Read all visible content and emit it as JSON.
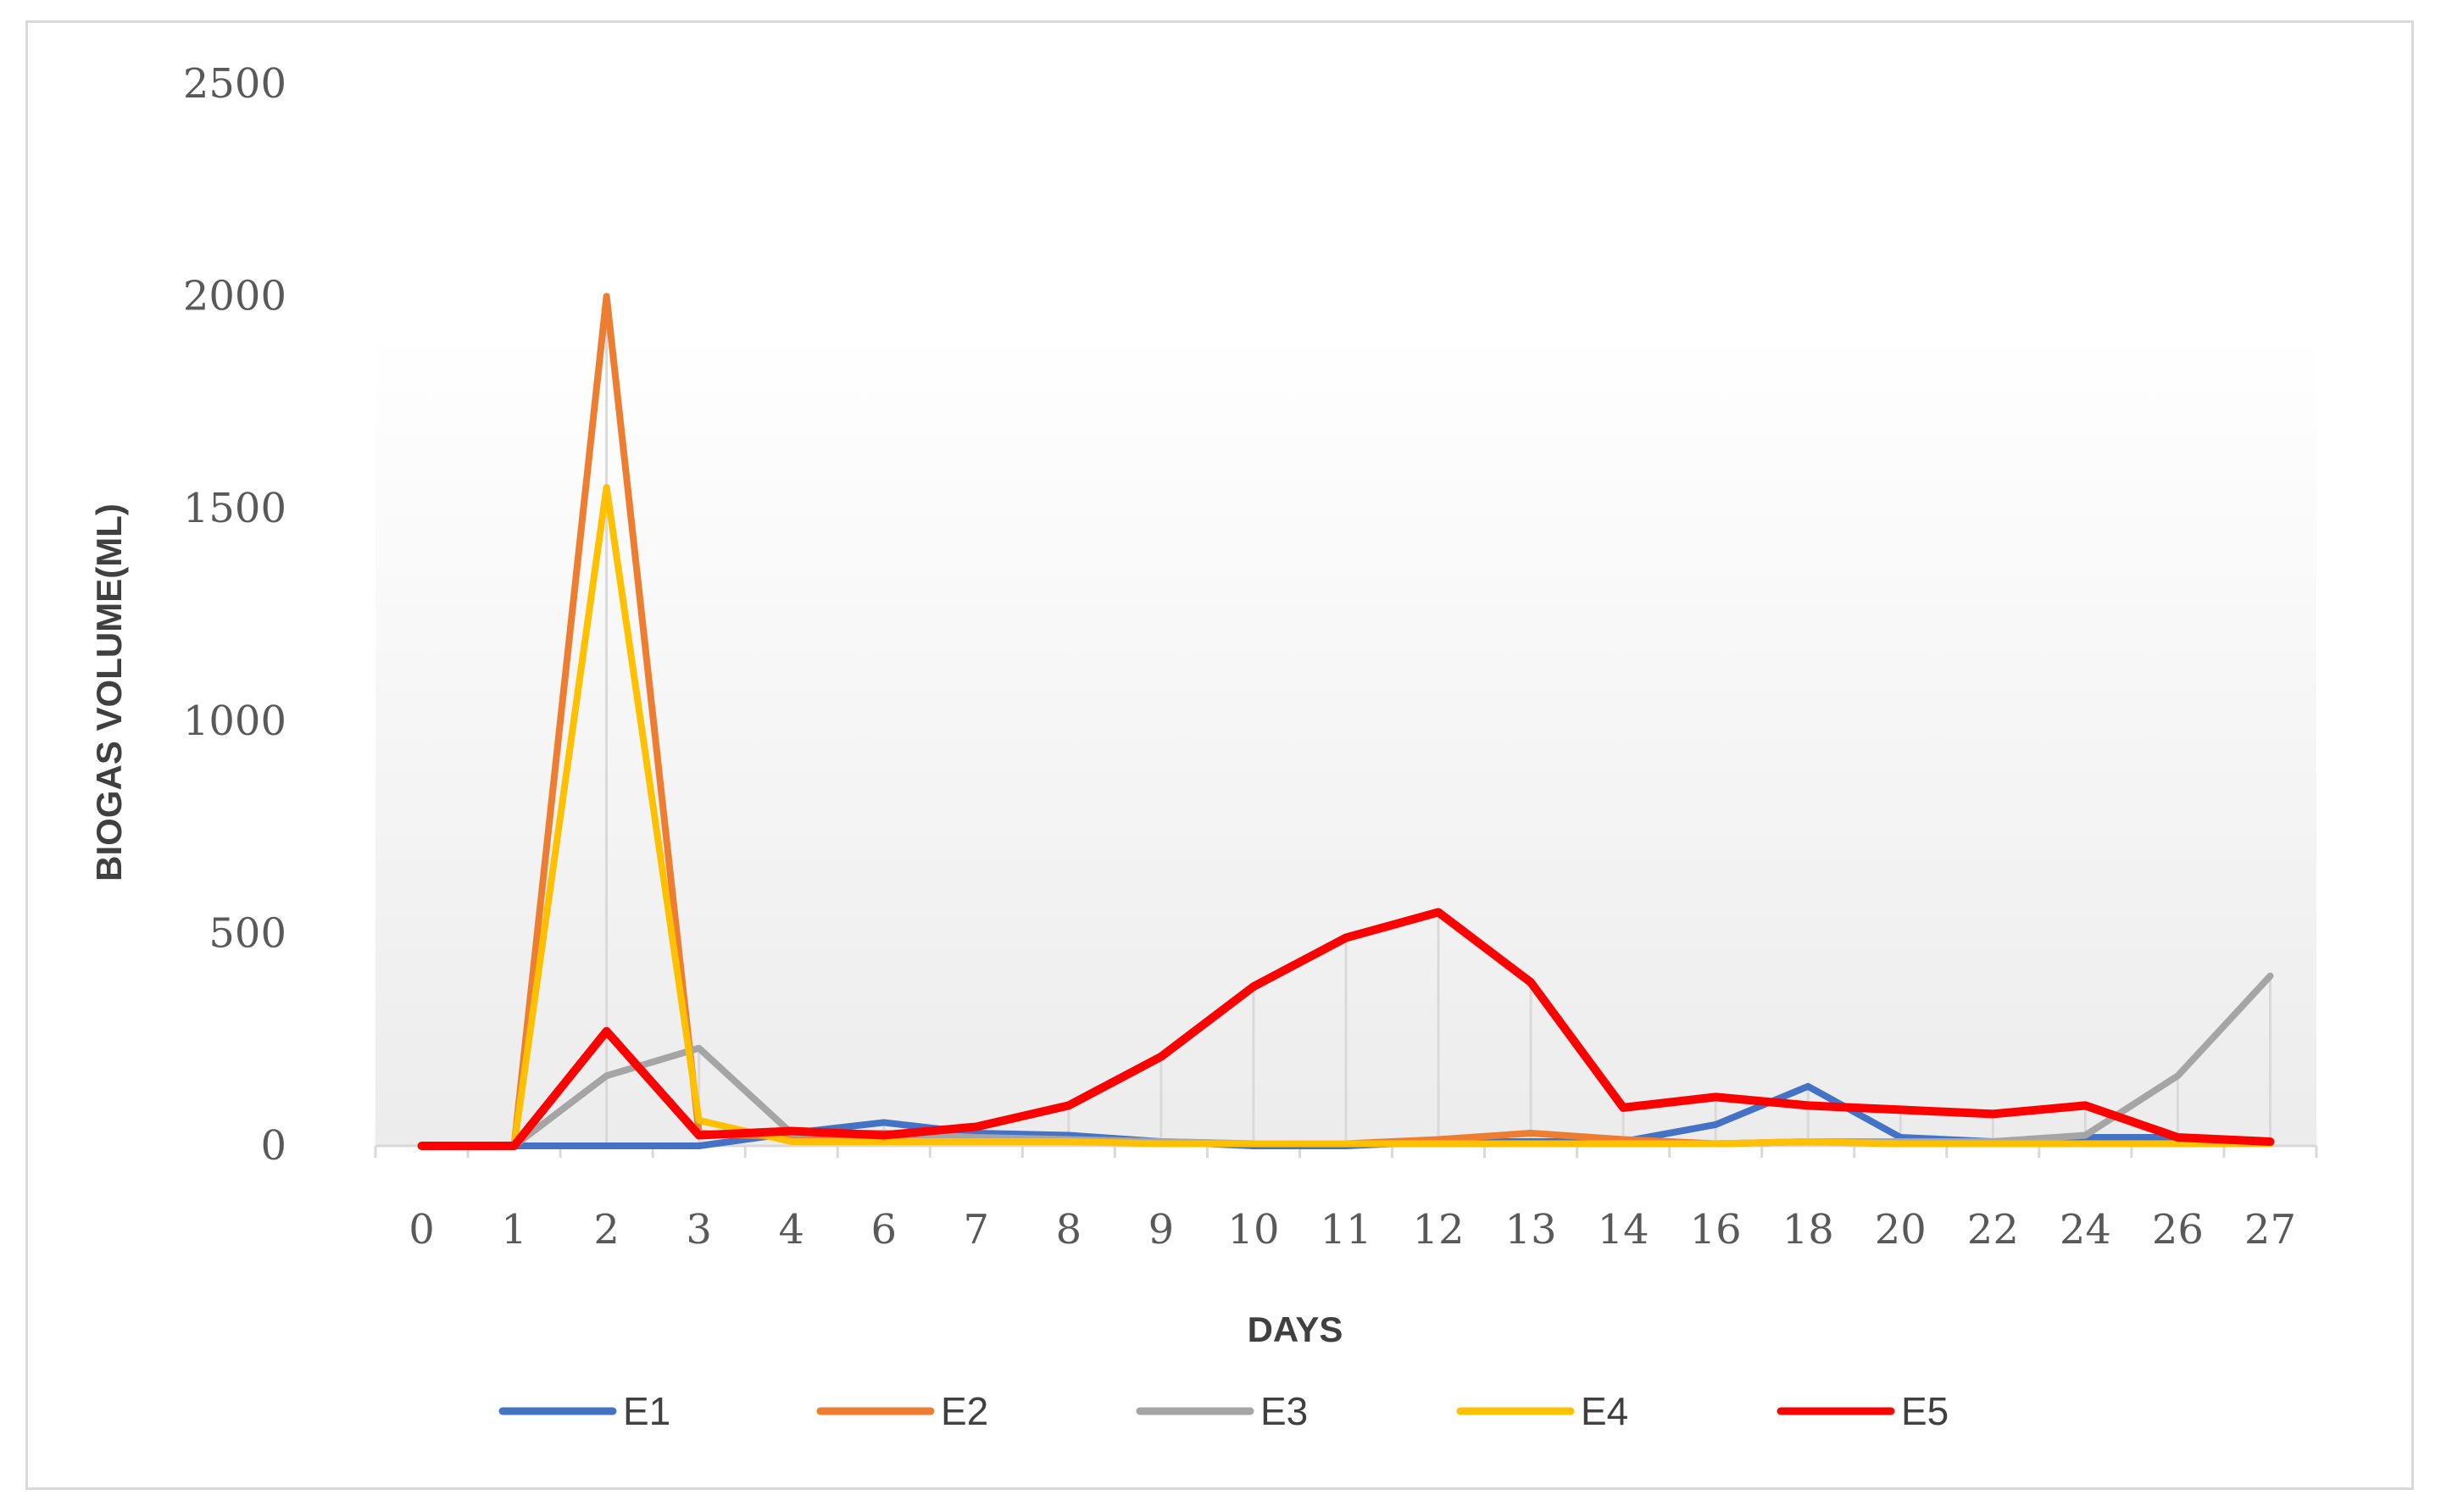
{
  "chart_data": {
    "type": "line",
    "xlabel": "DAYS",
    "ylabel": "BIOGAS VOLUME(ML)",
    "categories": [
      "0",
      "1",
      "2",
      "3",
      "4",
      "6",
      "7",
      "8",
      "9",
      "10",
      "11",
      "12",
      "13",
      "14",
      "16",
      "18",
      "20",
      "22",
      "24",
      "26",
      "27"
    ],
    "ylim": [
      0,
      2500
    ],
    "yticks": [
      0,
      500,
      1000,
      1500,
      2000,
      2500
    ],
    "grid": "vertical drop lines",
    "legend_position": "bottom",
    "series": [
      {
        "name": "E1",
        "color": "#4472c4",
        "values": [
          0,
          0,
          0,
          0,
          30,
          55,
          30,
          25,
          10,
          0,
          0,
          10,
          10,
          10,
          50,
          140,
          20,
          10,
          20,
          20,
          10
        ]
      },
      {
        "name": "E2",
        "color": "#ed7d31",
        "values": [
          0,
          0,
          2000,
          30,
          20,
          20,
          15,
          10,
          10,
          5,
          5,
          15,
          30,
          15,
          5,
          10,
          5,
          5,
          5,
          5,
          5
        ]
      },
      {
        "name": "E3",
        "color": "#a5a5a5",
        "values": [
          0,
          0,
          165,
          230,
          30,
          30,
          20,
          15,
          10,
          5,
          5,
          5,
          5,
          5,
          5,
          10,
          10,
          10,
          25,
          165,
          400
        ]
      },
      {
        "name": "E4",
        "color": "#ffc000",
        "values": [
          0,
          0,
          1550,
          60,
          10,
          10,
          10,
          10,
          5,
          5,
          5,
          5,
          5,
          5,
          5,
          10,
          5,
          5,
          5,
          5,
          5
        ]
      },
      {
        "name": "E5",
        "color": "#ff0000",
        "values": [
          0,
          0,
          270,
          25,
          35,
          25,
          45,
          95,
          210,
          375,
          490,
          550,
          385,
          90,
          115,
          95,
          85,
          75,
          95,
          20,
          10
        ]
      }
    ]
  }
}
